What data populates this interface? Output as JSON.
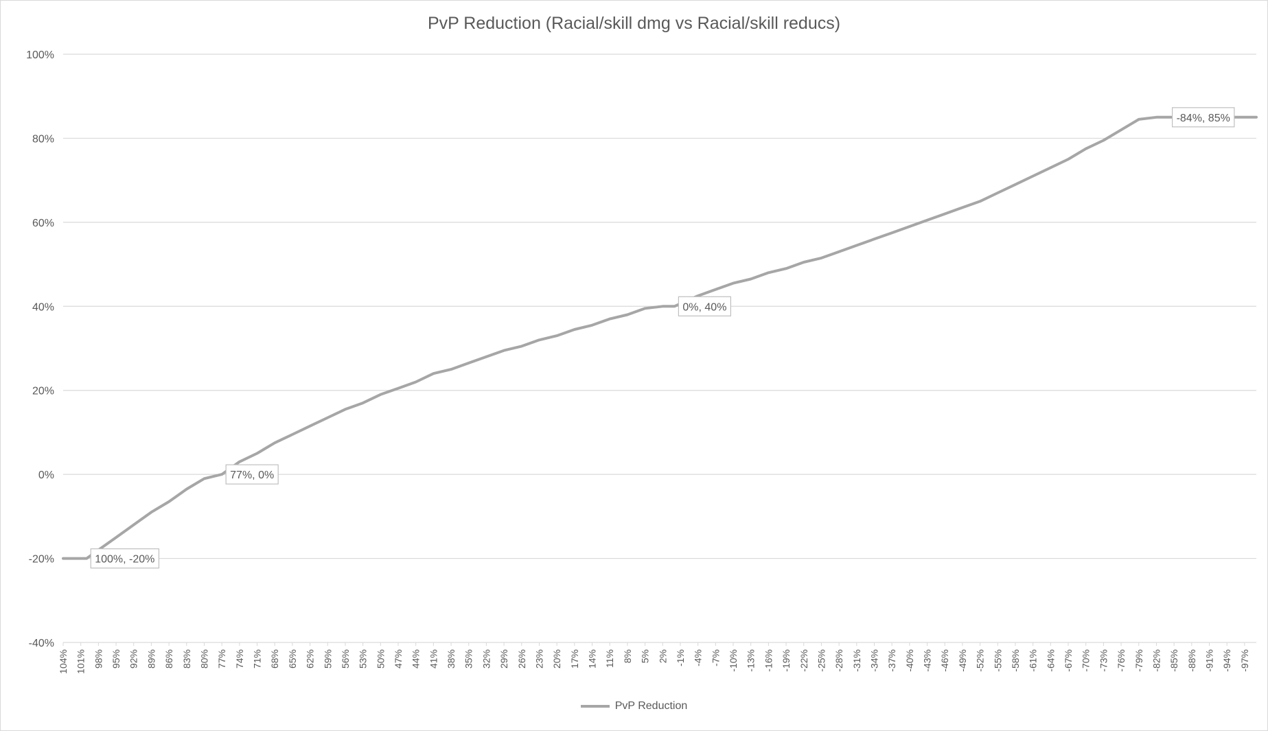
{
  "chart_data": {
    "type": "line",
    "title": "PvP Reduction (Racial/skill dmg vs Racial/skill reducs)",
    "xlabel": "",
    "ylabel": "",
    "x_axis_reversed": true,
    "x_range": [
      104,
      -99
    ],
    "x_tick_labels": [
      "104%",
      "101%",
      "98%",
      "95%",
      "92%",
      "89%",
      "86%",
      "83%",
      "80%",
      "77%",
      "74%",
      "71%",
      "68%",
      "65%",
      "62%",
      "59%",
      "56%",
      "53%",
      "50%",
      "47%",
      "44%",
      "41%",
      "38%",
      "35%",
      "32%",
      "29%",
      "26%",
      "23%",
      "20%",
      "17%",
      "14%",
      "11%",
      "8%",
      "5%",
      "2%",
      "-1%",
      "-4%",
      "-7%",
      "-10%",
      "-13%",
      "-16%",
      "-19%",
      "-22%",
      "-25%",
      "-28%",
      "-31%",
      "-34%",
      "-37%",
      "-40%",
      "-43%",
      "-46%",
      "-49%",
      "-52%",
      "-55%",
      "-58%",
      "-61%",
      "-64%",
      "-67%",
      "-70%",
      "-73%",
      "-76%",
      "-79%",
      "-82%",
      "-85%",
      "-88%",
      "-91%",
      "-94%",
      "-97%"
    ],
    "y_tick_labels": [
      "100%",
      "80%",
      "60%",
      "40%",
      "20%",
      "0%",
      "-20%",
      "-40%"
    ],
    "ylim": [
      -40,
      100
    ],
    "grid": true,
    "legend_position": "bottom",
    "series": [
      {
        "name": "PvP Reduction",
        "color": "#a6a6a6",
        "x": [
          104,
          101,
          100,
          98,
          95,
          92,
          89,
          86,
          83,
          80,
          77,
          74,
          71,
          68,
          65,
          62,
          59,
          56,
          53,
          50,
          47,
          44,
          41,
          38,
          35,
          32,
          29,
          26,
          23,
          20,
          17,
          14,
          11,
          8,
          5,
          2,
          0,
          -4,
          -7,
          -10,
          -13,
          -16,
          -19,
          -22,
          -25,
          -28,
          -31,
          -34,
          -37,
          -40,
          -43,
          -46,
          -49,
          -52,
          -55,
          -58,
          -61,
          -64,
          -67,
          -70,
          -73,
          -76,
          -79,
          -82,
          -84,
          -88,
          -91,
          -94,
          -97,
          -99
        ],
        "y": [
          -20,
          -20,
          -20,
          -18,
          -15,
          -12,
          -9,
          -6.5,
          -3.5,
          -1,
          0,
          3,
          5,
          7.5,
          9.5,
          11.5,
          13.5,
          15.5,
          17,
          19,
          20.5,
          22,
          24,
          25,
          26.5,
          28,
          29.5,
          30.5,
          32,
          33,
          34.5,
          35.5,
          37,
          38,
          39.5,
          40,
          40,
          42.5,
          44,
          45.5,
          46.5,
          48,
          49,
          50.5,
          51.5,
          53,
          54.5,
          56,
          57.5,
          59,
          60.5,
          62,
          63.5,
          65,
          67,
          69,
          71,
          73,
          75,
          77.5,
          79.5,
          82,
          84.5,
          85,
          85,
          85,
          85,
          85,
          85,
          85
        ]
      }
    ],
    "annotations": [
      {
        "x": 100,
        "y": -20,
        "label": "100%, -20%"
      },
      {
        "x": 77,
        "y": 0,
        "label": "77%, 0%"
      },
      {
        "x": 0,
        "y": 40,
        "label": "0%, 40%"
      },
      {
        "x": -84,
        "y": 85,
        "label": "-84%, 85%"
      }
    ]
  }
}
